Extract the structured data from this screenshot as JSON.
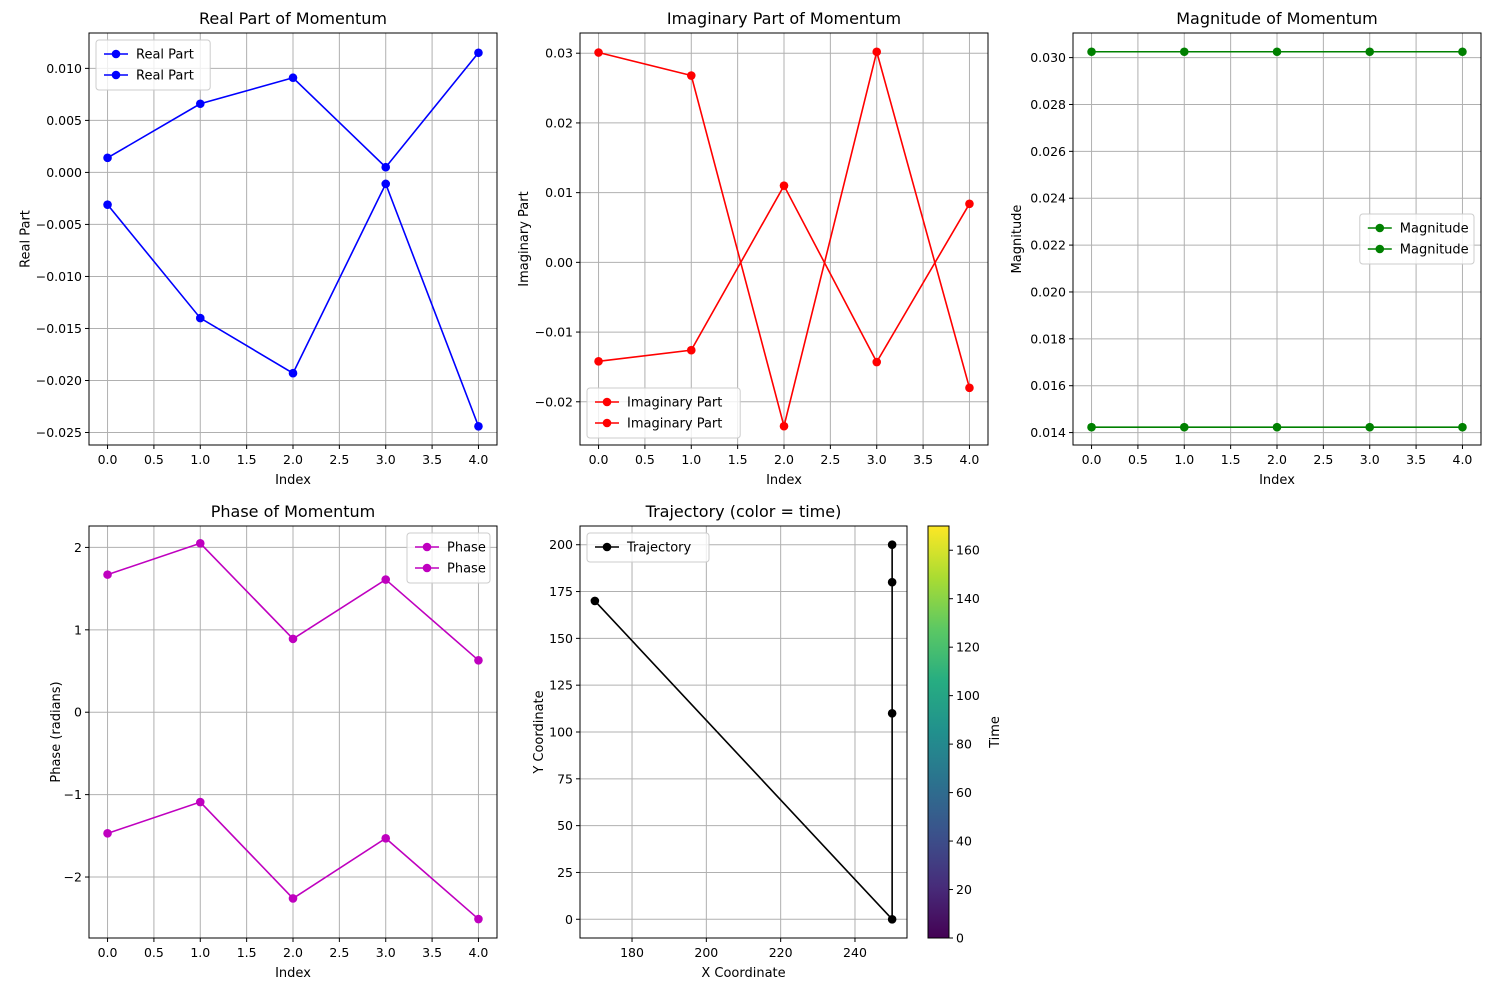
{
  "chart_data": [
    {
      "type": "line",
      "title": "Real Part of Momentum",
      "xlabel": "Index",
      "ylabel": "Real Part",
      "xlim": [
        -0.2,
        4.2
      ],
      "ylim": [
        -0.0262,
        0.0134
      ],
      "xticks": [
        0.0,
        0.5,
        1.0,
        1.5,
        2.0,
        2.5,
        3.0,
        3.5,
        4.0
      ],
      "xtick_labels": [
        "0.0",
        "0.5",
        "1.0",
        "1.5",
        "2.0",
        "2.5",
        "3.0",
        "3.5",
        "4.0"
      ],
      "yticks": [
        -0.025,
        -0.02,
        -0.015,
        -0.01,
        -0.005,
        0.0,
        0.005,
        0.01
      ],
      "ytick_labels": [
        "−0.025",
        "−0.020",
        "−0.015",
        "−0.010",
        "−0.005",
        "0.000",
        "0.005",
        "0.010"
      ],
      "grid": true,
      "legend_position": "upper-left",
      "color": "#0000ff",
      "series": [
        {
          "name": "Real Part",
          "x": [
            0,
            1,
            2,
            3,
            4
          ],
          "values": [
            0.0014,
            0.0066,
            0.0091,
            0.0005,
            0.0115
          ]
        },
        {
          "name": "Real Part",
          "x": [
            0,
            1,
            2,
            3,
            4
          ],
          "values": [
            -0.0031,
            -0.014,
            -0.0193,
            -0.0011,
            -0.0244
          ]
        }
      ]
    },
    {
      "type": "line",
      "title": "Imaginary Part of Momentum",
      "xlabel": "Index",
      "ylabel": "Imaginary Part",
      "xlim": [
        -0.2,
        4.2
      ],
      "ylim": [
        -0.0262,
        0.0329
      ],
      "xticks": [
        0.0,
        0.5,
        1.0,
        1.5,
        2.0,
        2.5,
        3.0,
        3.5,
        4.0
      ],
      "xtick_labels": [
        "0.0",
        "0.5",
        "1.0",
        "1.5",
        "2.0",
        "2.5",
        "3.0",
        "3.5",
        "4.0"
      ],
      "yticks": [
        -0.02,
        -0.01,
        0.0,
        0.01,
        0.02,
        0.03
      ],
      "ytick_labels": [
        "−0.02",
        "−0.01",
        "0.00",
        "0.01",
        "0.02",
        "0.03"
      ],
      "grid": true,
      "legend_position": "lower-left",
      "color": "#ff0000",
      "series": [
        {
          "name": "Imaginary Part",
          "x": [
            0,
            1,
            2,
            3,
            4
          ],
          "values": [
            0.0301,
            0.0268,
            -0.0235,
            0.0302,
            -0.018
          ]
        },
        {
          "name": "Imaginary Part",
          "x": [
            0,
            1,
            2,
            3,
            4
          ],
          "values": [
            -0.0142,
            -0.0126,
            0.011,
            -0.0143,
            0.0084
          ]
        }
      ]
    },
    {
      "type": "line",
      "title": "Magnitude of Momentum",
      "xlabel": "Index",
      "ylabel": "Magnitude",
      "xlim": [
        -0.2,
        4.2
      ],
      "ylim": [
        0.01347,
        0.03105
      ],
      "xticks": [
        0.0,
        0.5,
        1.0,
        1.5,
        2.0,
        2.5,
        3.0,
        3.5,
        4.0
      ],
      "xtick_labels": [
        "0.0",
        "0.5",
        "1.0",
        "1.5",
        "2.0",
        "2.5",
        "3.0",
        "3.5",
        "4.0"
      ],
      "yticks": [
        0.014,
        0.016,
        0.018,
        0.02,
        0.022,
        0.024,
        0.026,
        0.028,
        0.03
      ],
      "ytick_labels": [
        "0.014",
        "0.016",
        "0.018",
        "0.020",
        "0.022",
        "0.024",
        "0.026",
        "0.028",
        "0.030"
      ],
      "grid": true,
      "legend_position": "center-right",
      "color": "#008000",
      "series": [
        {
          "name": "Magnitude",
          "x": [
            0,
            1,
            2,
            3,
            4
          ],
          "values": [
            0.03025,
            0.03025,
            0.03025,
            0.03025,
            0.03025
          ]
        },
        {
          "name": "Magnitude",
          "x": [
            0,
            1,
            2,
            3,
            4
          ],
          "values": [
            0.01423,
            0.01423,
            0.01423,
            0.01423,
            0.01423
          ]
        }
      ]
    },
    {
      "type": "line",
      "title": "Phase of Momentum",
      "xlabel": "Index",
      "ylabel": "Phase (radians)",
      "xlim": [
        -0.2,
        4.2
      ],
      "ylim": [
        -2.74,
        2.26
      ],
      "xticks": [
        0.0,
        0.5,
        1.0,
        1.5,
        2.0,
        2.5,
        3.0,
        3.5,
        4.0
      ],
      "xtick_labels": [
        "0.0",
        "0.5",
        "1.0",
        "1.5",
        "2.0",
        "2.5",
        "3.0",
        "3.5",
        "4.0"
      ],
      "yticks": [
        -2,
        -1,
        0,
        1,
        2
      ],
      "ytick_labels": [
        "−2",
        "−1",
        "0",
        "1",
        "2"
      ],
      "grid": true,
      "legend_position": "upper-right",
      "color": "#bf00bf",
      "series": [
        {
          "name": "Phase",
          "x": [
            0,
            1,
            2,
            3,
            4
          ],
          "values": [
            1.67,
            2.05,
            0.89,
            1.61,
            0.63
          ]
        },
        {
          "name": "Phase",
          "x": [
            0,
            1,
            2,
            3,
            4
          ],
          "values": [
            -1.47,
            -1.09,
            -2.26,
            -1.53,
            -2.51
          ]
        }
      ]
    },
    {
      "type": "line",
      "title": "Trajectory (color = time)",
      "xlabel": "X Coordinate",
      "ylabel": "Y Coordinate",
      "xlim": [
        166,
        254
      ],
      "ylim": [
        -10,
        210
      ],
      "xticks": [
        180,
        200,
        220,
        240
      ],
      "xtick_labels": [
        "180",
        "200",
        "220",
        "240"
      ],
      "yticks": [
        0,
        25,
        50,
        75,
        100,
        125,
        150,
        175,
        200
      ],
      "ytick_labels": [
        "0",
        "25",
        "50",
        "75",
        "100",
        "125",
        "150",
        "175",
        "200"
      ],
      "grid": true,
      "legend_position": "upper-left",
      "color": "#000000",
      "series": [
        {
          "name": "Trajectory",
          "x": [
            170,
            250,
            250,
            250,
            250
          ],
          "values": [
            170,
            0,
            110,
            180,
            200
          ]
        }
      ],
      "colorbar": {
        "label": "Time",
        "range": [
          0,
          170
        ],
        "ticks": [
          0,
          20,
          40,
          60,
          80,
          100,
          120,
          140,
          160
        ],
        "tick_labels": [
          "0",
          "20",
          "40",
          "60",
          "80",
          "100",
          "120",
          "140",
          "160"
        ],
        "colormap": "viridis"
      }
    }
  ]
}
